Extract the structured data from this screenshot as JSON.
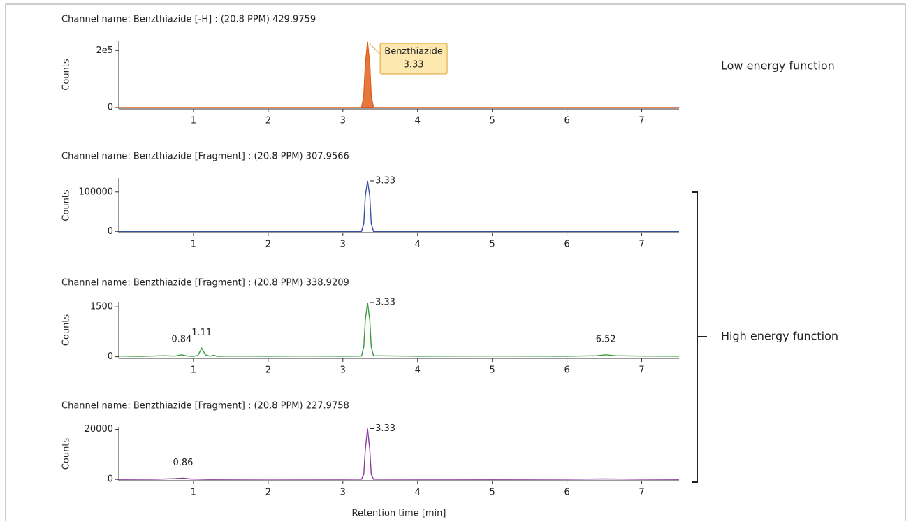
{
  "chart_data": [
    {
      "type": "line",
      "title": "Channel name: Benzthiazide [-H] : (20.8 PPM) 429.9759",
      "ylabel": "Counts",
      "fill": true,
      "xlim": [
        0,
        7.5
      ],
      "xticks": [
        1,
        2,
        3,
        4,
        5,
        6,
        7
      ],
      "ylim": [
        -5000,
        235000
      ],
      "yticks": [
        0,
        {
          "value": 200000,
          "label": "2e5"
        }
      ],
      "x": [
        0,
        1,
        2,
        3,
        3.25,
        3.28,
        3.3,
        3.33,
        3.36,
        3.38,
        3.41,
        4,
        5,
        6,
        7,
        7.5
      ],
      "series": [
        {
          "name": "Benzthiazide [-H]",
          "color": "#e0601c",
          "values": [
            0,
            0,
            0,
            0,
            0,
            40000,
            150000,
            230000,
            150000,
            40000,
            0,
            0,
            0,
            0,
            0,
            0
          ]
        }
      ],
      "annotations": [
        {
          "x": 3.33,
          "label": "3.33",
          "name": "Benzthiazide"
        }
      ]
    },
    {
      "type": "line",
      "title": "Channel name: Benzthiazide [Fragment] : (20.8 PPM) 307.9566",
      "ylabel": "Counts",
      "xlim": [
        0,
        7.5
      ],
      "xticks": [
        1,
        2,
        3,
        4,
        5,
        6,
        7
      ],
      "ylim": [
        -3000,
        135000
      ],
      "yticks": [
        0,
        100000
      ],
      "x": [
        0,
        1,
        2,
        3,
        3.25,
        3.28,
        3.3,
        3.33,
        3.36,
        3.38,
        3.41,
        4,
        5,
        6,
        7,
        7.5
      ],
      "series": [
        {
          "name": "Benzthiazide [Fragment] 307.9566",
          "color": "#3a4fa0",
          "values": [
            0,
            0,
            0,
            0,
            0,
            20000,
            90000,
            128000,
            90000,
            20000,
            0,
            0,
            0,
            0,
            0,
            0
          ]
        }
      ],
      "annotations": [
        {
          "x": 3.33,
          "label": "3.33"
        }
      ]
    },
    {
      "type": "line",
      "title": "Channel name: Benzthiazide [Fragment] : (20.8 PPM) 338.9209",
      "ylabel": "Counts",
      "xlim": [
        0,
        7.5
      ],
      "xticks": [
        1,
        2,
        3,
        4,
        5,
        6,
        7
      ],
      "ylim": [
        -50,
        1650
      ],
      "yticks": [
        0,
        1500
      ],
      "x": [
        0,
        0.3,
        0.6,
        0.75,
        0.84,
        0.92,
        1.0,
        1.06,
        1.11,
        1.16,
        1.22,
        1.27,
        1.32,
        1.5,
        2,
        2.5,
        3.0,
        3.25,
        3.28,
        3.3,
        3.33,
        3.36,
        3.38,
        3.41,
        4,
        5,
        6,
        6.4,
        6.52,
        6.65,
        7,
        7.5
      ],
      "series": [
        {
          "name": "Benzthiazide [Fragment] 338.9209",
          "color": "#3a9a3a",
          "values": [
            20,
            10,
            30,
            20,
            60,
            20,
            10,
            40,
            257,
            60,
            15,
            45,
            10,
            20,
            15,
            20,
            15,
            20,
            300,
            1100,
            1630,
            1100,
            300,
            30,
            15,
            20,
            15,
            30,
            60,
            30,
            20,
            15
          ]
        }
      ],
      "annotations": [
        {
          "x": 0.84,
          "label": "0.84"
        },
        {
          "x": 1.11,
          "label": "1.11"
        },
        {
          "x": 3.33,
          "label": "3.33"
        },
        {
          "x": 6.52,
          "label": "6.52"
        }
      ]
    },
    {
      "type": "line",
      "title": "Channel name: Benzthiazide [Fragment] : (20.8 PPM) 227.9758",
      "ylabel": "Counts",
      "xlabel": "Retention time [min]",
      "xlim": [
        0,
        7.5
      ],
      "xticks": [
        1,
        2,
        3,
        4,
        5,
        6,
        7
      ],
      "ylim": [
        -500,
        21000
      ],
      "yticks": [
        0,
        20000
      ],
      "x": [
        0,
        0.5,
        0.75,
        0.86,
        0.95,
        1.2,
        2,
        3,
        3.25,
        3.28,
        3.3,
        3.33,
        3.36,
        3.38,
        3.41,
        4,
        5,
        6,
        6.5,
        7,
        7.5
      ],
      "series": [
        {
          "name": "Benzthiazide [Fragment] 227.9758",
          "color": "#8a3a9a",
          "values": [
            0,
            100,
            300,
            500,
            200,
            0,
            100,
            50,
            100,
            2000,
            12000,
            20300,
            12000,
            2000,
            100,
            50,
            0,
            100,
            200,
            100,
            0
          ]
        }
      ],
      "annotations": [
        {
          "x": 0.86,
          "label": "0.86"
        },
        {
          "x": 3.33,
          "label": "3.33"
        }
      ]
    }
  ],
  "groups": {
    "low": "Low energy function",
    "high": "High energy function"
  }
}
